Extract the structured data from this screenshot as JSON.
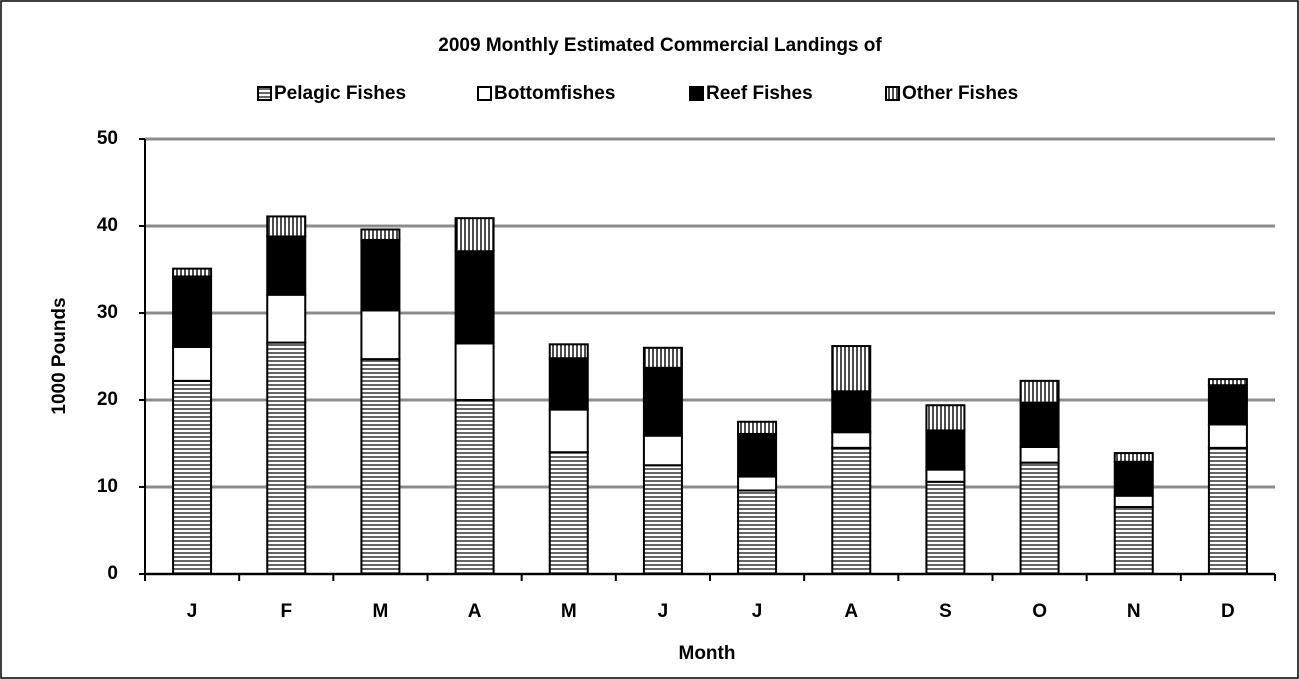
{
  "chart_data": {
    "type": "stacked_bar",
    "title": "2009 Monthly Estimated Commercial Landings of",
    "x_label": "Month",
    "y_label": "1000 Pounds",
    "categories": [
      "J",
      "F",
      "M",
      "A",
      "M",
      "J",
      "J",
      "A",
      "S",
      "O",
      "N",
      "D"
    ],
    "series": [
      {
        "name": "Pelagic Fishes",
        "color": "#000000",
        "pattern": "horizontal",
        "values": [
          22.2,
          26.6,
          24.7,
          20.0,
          14.0,
          12.5,
          9.6,
          14.5,
          10.6,
          12.8,
          7.7,
          14.5
        ]
      },
      {
        "name": "Bottomfishes",
        "color": "#ffffff",
        "pattern": "solid",
        "values": [
          3.9,
          5.5,
          5.6,
          6.5,
          4.9,
          3.4,
          1.6,
          1.8,
          1.4,
          1.8,
          1.3,
          2.7
        ]
      },
      {
        "name": "Reef Fishes",
        "color": "#000000",
        "pattern": "solid",
        "values": [
          8.1,
          6.7,
          8.1,
          10.6,
          5.9,
          7.8,
          4.9,
          4.7,
          4.5,
          5.1,
          3.9,
          4.5
        ]
      },
      {
        "name": "Other Fishes",
        "color": "#000000",
        "pattern": "vertical",
        "values": [
          0.9,
          2.3,
          1.2,
          3.8,
          1.6,
          2.3,
          1.4,
          5.2,
          2.9,
          2.5,
          1.0,
          0.7
        ]
      }
    ],
    "ylim": [
      0,
      50
    ],
    "yticks": [
      0,
      10,
      20,
      30,
      40,
      50
    ],
    "grid": true,
    "legend": "top"
  }
}
